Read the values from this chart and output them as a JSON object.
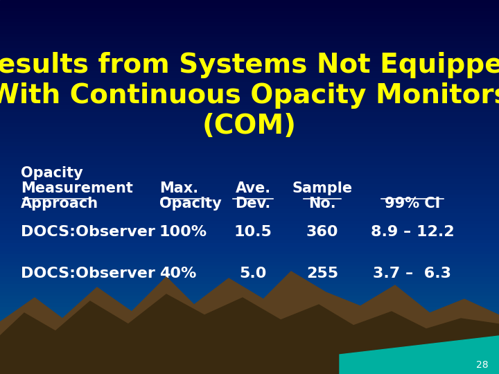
{
  "title_line1": "Results from Systems Not Equipped",
  "title_line2": "With Continuous Opacity Monitors",
  "title_line3": "(COM)",
  "title_color": "#FFFF00",
  "title_fontsize": 28,
  "header_color": "#FFFFFF",
  "header_fontsize": 15,
  "row1_col1": "DOCS:Observer",
  "row1_col2": "100%",
  "row1_col3": "10.5",
  "row1_col4": "360",
  "row1_col5": "8.9 – 12.2",
  "row2_col1": "DOCS:Observer",
  "row2_col2": "40%",
  "row2_col3": "5.0",
  "row2_col4": "255",
  "row2_col5": "3.7 –  6.3",
  "data_color": "#FFFFFF",
  "data_fontsize": 16,
  "page_number": "28",
  "page_number_color": "#FFFFFF",
  "page_number_fontsize": 10,
  "mountain_color": "#5a4020",
  "mountain_dark_color": "#3a2a10",
  "teal_color": "#00B0A0"
}
